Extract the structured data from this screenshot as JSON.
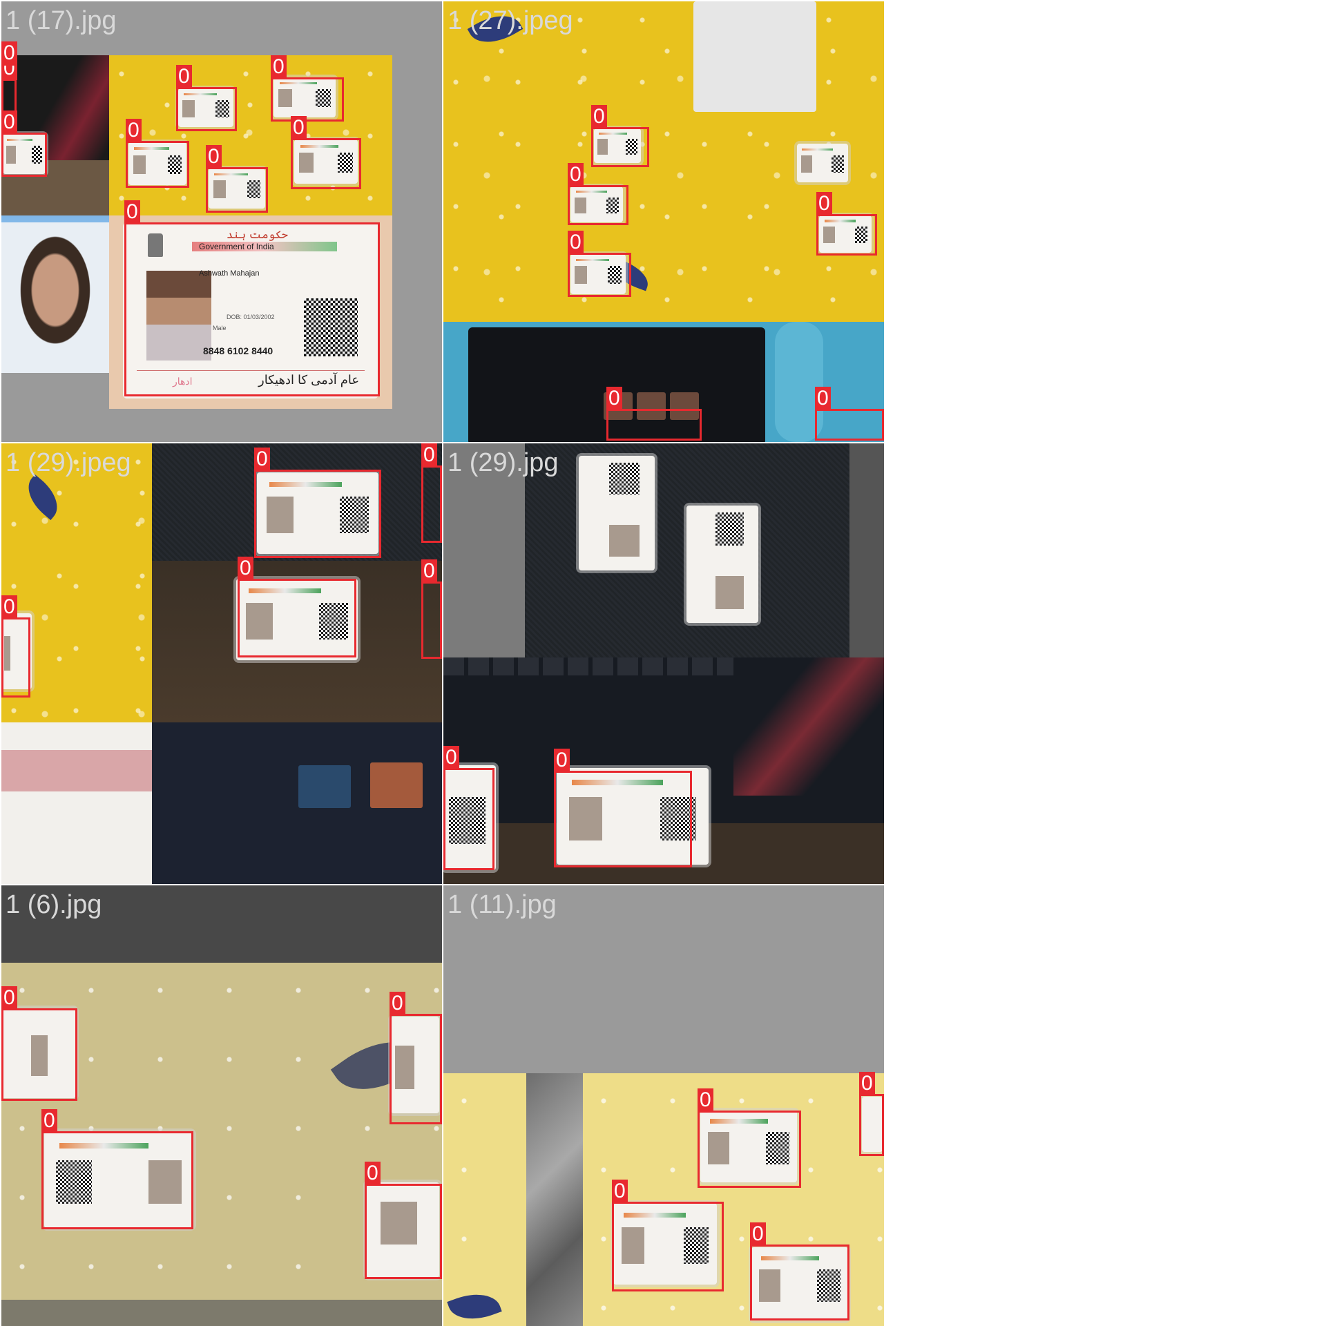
{
  "tiles": [
    {
      "filename": "1 (17).jpg",
      "class_labels": [
        "0",
        "0",
        "0",
        "0",
        "0",
        "0",
        "0",
        "0",
        "0"
      ]
    },
    {
      "filename": "1 (27).jpeg",
      "class_labels": [
        "0",
        "0",
        "0",
        "0",
        "0",
        "0"
      ]
    },
    {
      "filename": "1 (29).jpeg",
      "class_labels": [
        "0",
        "0",
        "0",
        "0",
        "0"
      ]
    },
    {
      "filename": "1 (29).jpg",
      "class_labels": [
        "0",
        "0"
      ]
    },
    {
      "filename": "1 (6).jpg",
      "class_labels": [
        "0",
        "0",
        "0",
        "0"
      ]
    },
    {
      "filename": "1 (11).jpg",
      "class_labels": [
        "0",
        "0",
        "0",
        "0"
      ]
    }
  ],
  "big_card": {
    "header_urdu": "حکومت ہند",
    "header_en": "Government of India",
    "name": "Ashwath Mahajan",
    "dob": "DOB: 01/03/2002",
    "gender": "Male",
    "number": "8848 6102 8440",
    "footer_urdu": "عام آدمی کا ادھیکار",
    "footer_pink": "ادھار"
  },
  "colors": {
    "box": "#e8292f",
    "label_text": "#ffffff",
    "filename_text": "#d9d9d9"
  }
}
